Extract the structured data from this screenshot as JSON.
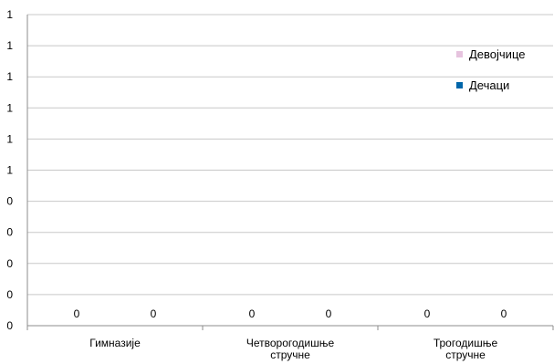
{
  "chart_data": {
    "type": "bar",
    "categories": [
      "Гимназије",
      "Четворогодишње стручне",
      "Трогодишње стручне"
    ],
    "series": [
      {
        "name": "Девојчице",
        "values": [
          0,
          0,
          0
        ],
        "color": "#e6c3de"
      },
      {
        "name": "Дечаци",
        "values": [
          0,
          0,
          0
        ],
        "color": "#0066aa"
      }
    ],
    "y_tick_labels": [
      "0",
      "0",
      "0",
      "0",
      "0",
      "1",
      "1",
      "1",
      "1",
      "1",
      "1"
    ],
    "ylim": [
      0,
      1
    ],
    "grid": true,
    "legend_position": "right",
    "title": "",
    "xlabel": "",
    "ylabel": ""
  }
}
